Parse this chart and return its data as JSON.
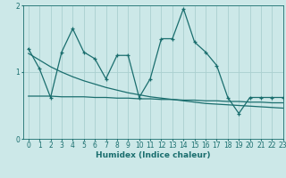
{
  "xlabel": "Humidex (Indice chaleur)",
  "background_color": "#cce8e8",
  "grid_color": "#aad0d0",
  "line_color": "#1a6e6e",
  "x_data": [
    0,
    1,
    2,
    3,
    4,
    5,
    6,
    7,
    8,
    9,
    10,
    11,
    12,
    13,
    14,
    15,
    16,
    17,
    18,
    19,
    20,
    21,
    22,
    23
  ],
  "y_main": [
    1.35,
    1.05,
    0.62,
    1.3,
    1.65,
    1.3,
    1.2,
    0.9,
    1.25,
    1.25,
    0.62,
    0.9,
    1.5,
    1.5,
    1.95,
    1.45,
    1.3,
    1.1,
    0.62,
    0.38,
    0.62,
    0.62,
    0.62,
    0.62
  ],
  "y_trend1": [
    1.28,
    1.18,
    1.08,
    1.0,
    0.93,
    0.87,
    0.82,
    0.77,
    0.73,
    0.69,
    0.66,
    0.63,
    0.61,
    0.59,
    0.57,
    0.55,
    0.53,
    0.52,
    0.51,
    0.5,
    0.49,
    0.48,
    0.47,
    0.46
  ],
  "y_trend2": [
    0.64,
    0.64,
    0.64,
    0.63,
    0.63,
    0.63,
    0.62,
    0.62,
    0.61,
    0.61,
    0.6,
    0.6,
    0.59,
    0.59,
    0.58,
    0.58,
    0.57,
    0.57,
    0.56,
    0.56,
    0.55,
    0.55,
    0.54,
    0.54
  ],
  "ylim": [
    0,
    2
  ],
  "xlim": [
    -0.5,
    23
  ],
  "yticks": [
    0,
    1,
    2
  ],
  "xticks": [
    0,
    1,
    2,
    3,
    4,
    5,
    6,
    7,
    8,
    9,
    10,
    11,
    12,
    13,
    14,
    15,
    16,
    17,
    18,
    19,
    20,
    21,
    22,
    23
  ],
  "tick_fontsize": 5.5,
  "xlabel_fontsize": 6.5
}
